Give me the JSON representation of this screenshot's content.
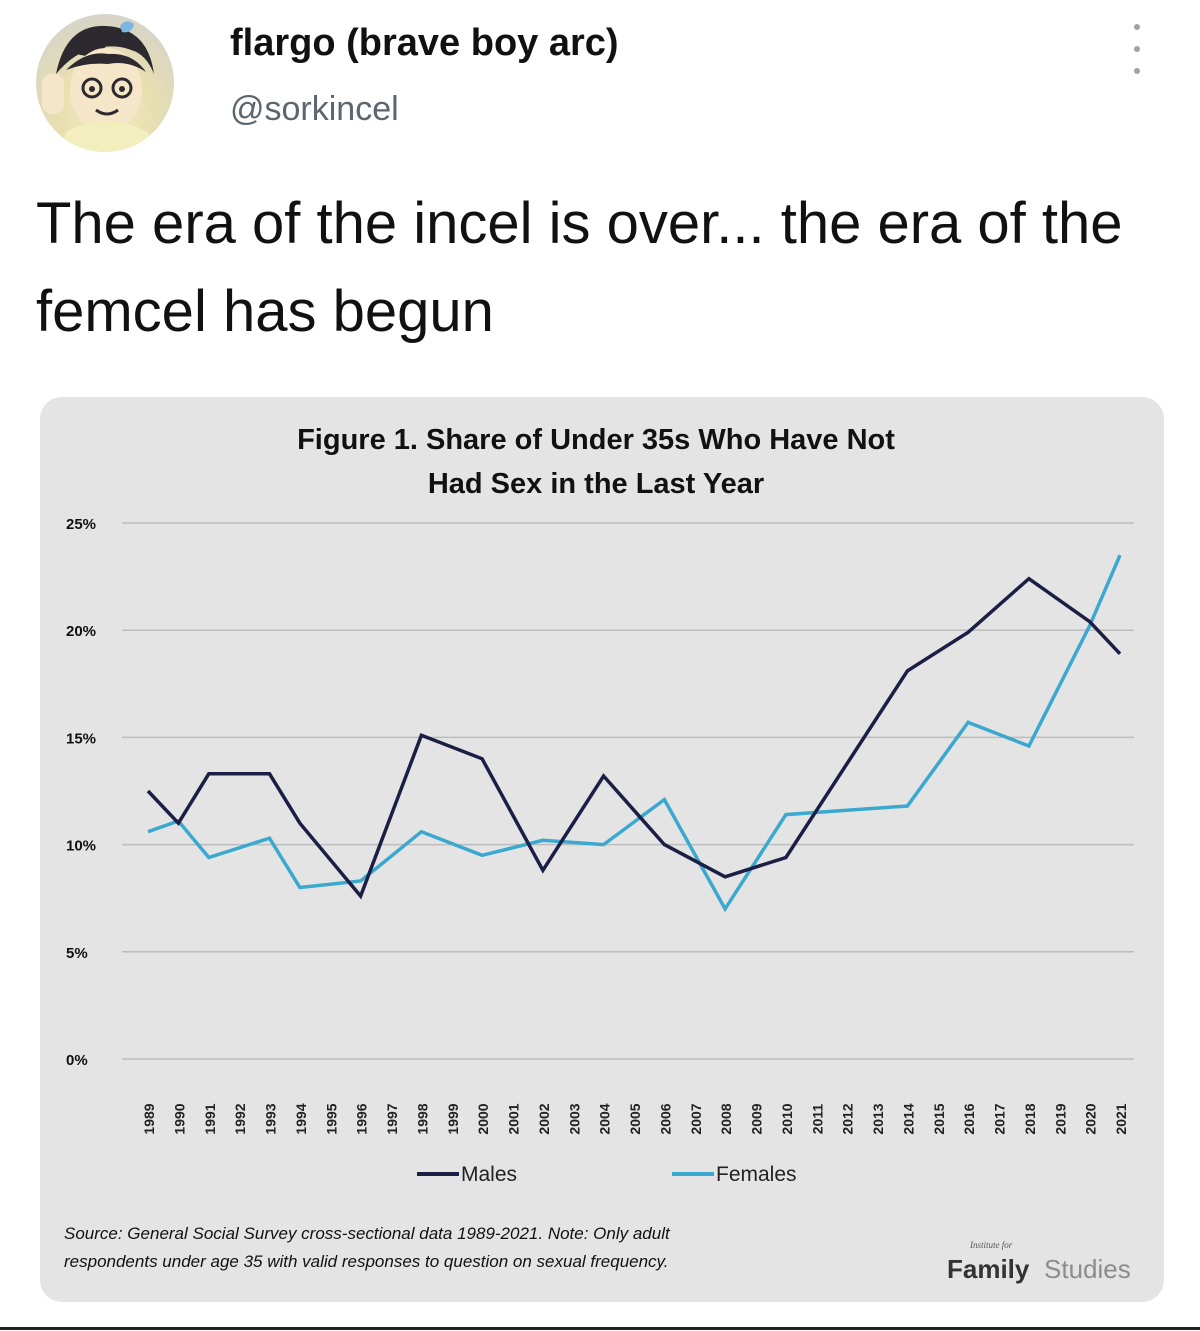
{
  "tweet": {
    "name": "flargo (brave boy arc)",
    "handle": "@sorkincel",
    "text": "The era of the incel is over... the era of the femcel has begun",
    "more_icon": "more-vertical-icon",
    "avatar_icon": "anime-avatar"
  },
  "chart_data": {
    "type": "line",
    "title_lines": [
      "Figure 1. Share of Under 35s Who Have Not",
      "Had Sex in the Last Year"
    ],
    "x": [
      "1989",
      "1990",
      "1991",
      "1992",
      "1993",
      "1994",
      "1995",
      "1996",
      "1997",
      "1998",
      "1999",
      "2000",
      "2001",
      "2002",
      "2003",
      "2004",
      "2005",
      "2006",
      "2007",
      "2008",
      "2009",
      "2010",
      "2011",
      "2012",
      "2013",
      "2014",
      "2015",
      "2016",
      "2017",
      "2018",
      "2019",
      "2020",
      "2021"
    ],
    "y_ticks": [
      "0%",
      "5%",
      "10%",
      "15%",
      "20%",
      "25%"
    ],
    "ylim": [
      0,
      25
    ],
    "grid": true,
    "legend_position": "bottom",
    "series": [
      {
        "name": "Males",
        "color": "#1b1f45",
        "points": [
          [
            "1989",
            12.5
          ],
          [
            "1990",
            11.0
          ],
          [
            "1991",
            13.3
          ],
          [
            "1993",
            13.3
          ],
          [
            "1994",
            11.0
          ],
          [
            "1996",
            7.6
          ],
          [
            "1998",
            15.1
          ],
          [
            "2000",
            14.0
          ],
          [
            "2002",
            8.8
          ],
          [
            "2004",
            13.2
          ],
          [
            "2006",
            10.0
          ],
          [
            "2008",
            8.5
          ],
          [
            "2010",
            9.4
          ],
          [
            "2014",
            18.1
          ],
          [
            "2016",
            19.9
          ],
          [
            "2018",
            22.4
          ],
          [
            "2020",
            20.4
          ],
          [
            "2021",
            18.9
          ]
        ]
      },
      {
        "name": "Females",
        "color": "#3aa8cf",
        "points": [
          [
            "1989",
            10.6
          ],
          [
            "1990",
            11.1
          ],
          [
            "1991",
            9.4
          ],
          [
            "1993",
            10.3
          ],
          [
            "1994",
            8.0
          ],
          [
            "1996",
            8.3
          ],
          [
            "1998",
            10.6
          ],
          [
            "2000",
            9.5
          ],
          [
            "2002",
            10.2
          ],
          [
            "2004",
            10.0
          ],
          [
            "2006",
            12.1
          ],
          [
            "2008",
            7.0
          ],
          [
            "2010",
            11.4
          ],
          [
            "2012",
            11.6
          ],
          [
            "2014",
            11.8
          ],
          [
            "2016",
            15.7
          ],
          [
            "2018",
            14.6
          ],
          [
            "2020",
            20.2
          ],
          [
            "2021",
            23.5
          ]
        ]
      }
    ],
    "source_lines": [
      "Source: General Social Survey cross-sectional data 1989-2021. Note: Only adult",
      "respondents under age 35 with valid responses to question on sexual frequency."
    ],
    "logo": {
      "small": "Institute for",
      "text_bold": "Family",
      "text_light": "Studies"
    }
  }
}
